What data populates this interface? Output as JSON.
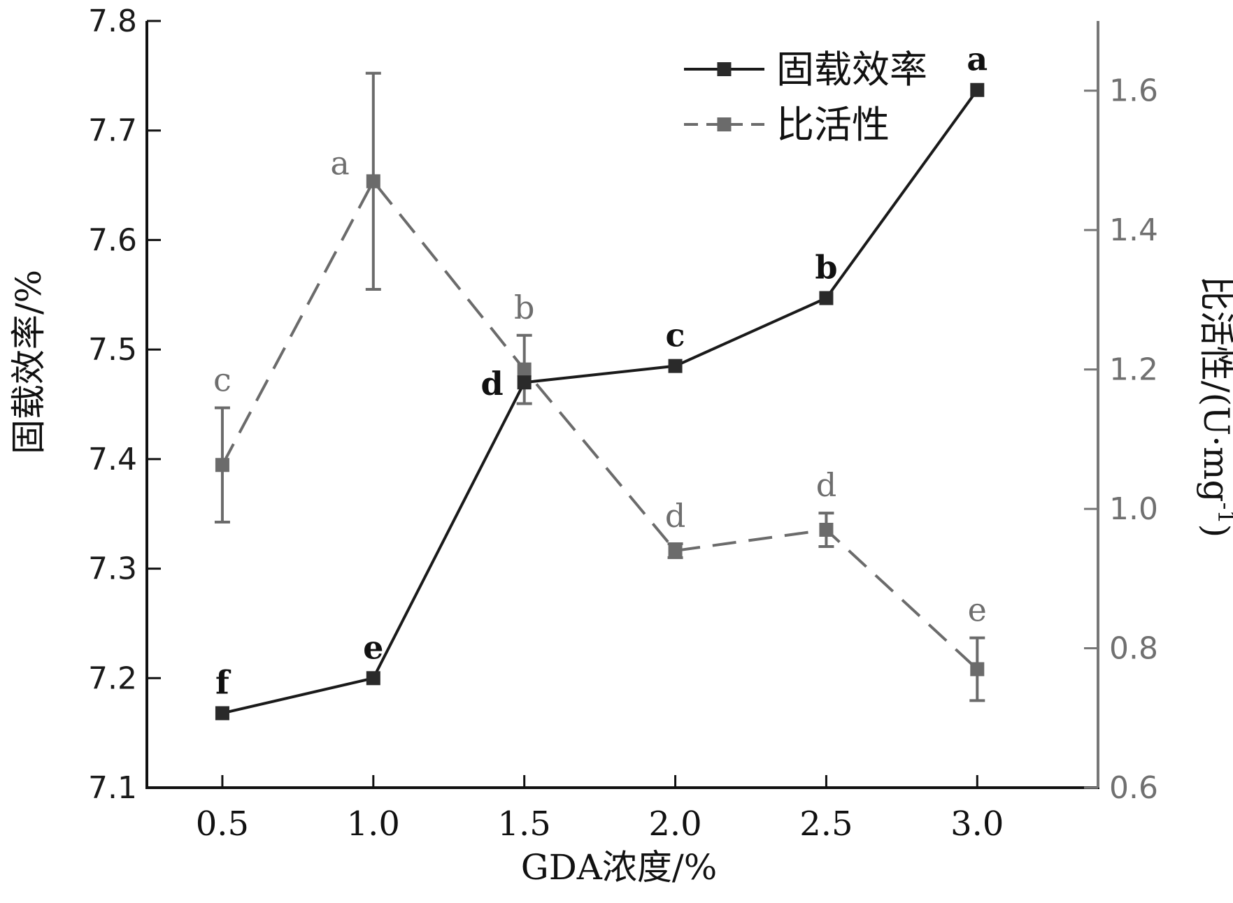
{
  "chart_data": {
    "type": "line",
    "x": [
      0.5,
      1.0,
      1.5,
      2.0,
      2.5,
      3.0
    ],
    "x_tick_labels": [
      "0.5",
      "1.0",
      "1.5",
      "2.0",
      "2.5",
      "3.0"
    ],
    "xlabel": "GDA浓度/%",
    "ylabel_left": "固载效率/%",
    "ylabel_right_main": "比活性/(U·mg",
    "ylabel_right_sup": "-1",
    "ylabel_right_close": ")",
    "ylim_left": [
      7.1,
      7.8
    ],
    "ylim_right": [
      0.6,
      1.7
    ],
    "y_ticks_left": [
      "7.1",
      "7.2",
      "7.3",
      "7.4",
      "7.5",
      "7.6",
      "7.7",
      "7.8"
    ],
    "y_ticks_right": [
      "0.6",
      "0.8",
      "1.0",
      "1.2",
      "1.4",
      "1.6"
    ],
    "legend_position": "top-right",
    "grid": false,
    "series": [
      {
        "name": "固载效率",
        "axis": "left",
        "style": "solid",
        "color": "#1a1a1a",
        "values": [
          7.168,
          7.2,
          7.47,
          7.485,
          7.547,
          7.737
        ],
        "labels": [
          "f",
          "e",
          "d",
          "c",
          "b",
          "a"
        ]
      },
      {
        "name": "比活性",
        "axis": "right",
        "style": "dashed",
        "color": "#6b6b6b",
        "values": [
          1.063,
          1.47,
          1.2,
          0.94,
          0.97,
          0.77
        ],
        "errors": [
          0.082,
          0.155,
          0.049,
          0.01,
          0.024,
          0.045
        ],
        "labels": [
          "c",
          "a",
          "b",
          "d",
          "d",
          "e"
        ]
      }
    ]
  }
}
